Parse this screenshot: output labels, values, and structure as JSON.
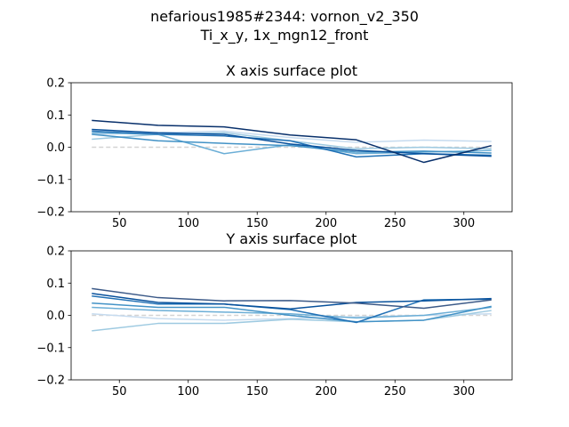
{
  "figure": {
    "suptitle_line1": "nefarious1985#2344: vornon_v2_350",
    "suptitle_line2": "Ti_x_y, 1x_mgn12_front"
  },
  "chart_data": [
    {
      "type": "line",
      "title": "X axis surface plot",
      "xlabel": "",
      "ylabel": "",
      "xlim": [
        15,
        335
      ],
      "ylim": [
        -0.2,
        0.2
      ],
      "xticks": [
        50,
        100,
        150,
        200,
        250,
        300
      ],
      "yticks": [
        -0.2,
        -0.1,
        0.0,
        0.1,
        0.2
      ],
      "grid": false,
      "legend": "none",
      "x": [
        30,
        78,
        126,
        174,
        222,
        271,
        320
      ],
      "reference_line": {
        "y": 0.0,
        "style": "dashed",
        "color": "#d3d3d3"
      },
      "series": [
        {
          "color": "#c6dbef",
          "values": [
            0.04,
            0.045,
            0.05,
            0.03,
            0.015,
            0.022,
            0.018
          ]
        },
        {
          "color": "#9ecae1",
          "values": [
            0.025,
            0.04,
            0.045,
            0.02,
            -0.005,
            0.0,
            -0.005
          ]
        },
        {
          "color": "#6baed6",
          "values": [
            0.045,
            0.04,
            -0.02,
            0.008,
            -0.02,
            -0.015,
            -0.01
          ]
        },
        {
          "color": "#4292c6",
          "values": [
            0.04,
            0.02,
            0.012,
            0.005,
            -0.015,
            -0.012,
            -0.018
          ]
        },
        {
          "color": "#2171b5",
          "values": [
            0.05,
            0.04,
            0.035,
            0.02,
            -0.03,
            -0.02,
            -0.025
          ]
        },
        {
          "color": "#08519c",
          "values": [
            0.055,
            0.045,
            0.04,
            0.01,
            -0.01,
            -0.02,
            -0.028
          ]
        },
        {
          "color": "#08306b",
          "values": [
            0.083,
            0.068,
            0.063,
            0.038,
            0.023,
            -0.047,
            0.005
          ]
        }
      ]
    },
    {
      "type": "line",
      "title": "Y axis surface plot",
      "xlabel": "",
      "ylabel": "",
      "xlim": [
        15,
        335
      ],
      "ylim": [
        -0.2,
        0.2
      ],
      "xticks": [
        50,
        100,
        150,
        200,
        250,
        300
      ],
      "yticks": [
        -0.2,
        -0.1,
        0.0,
        0.1,
        0.2
      ],
      "grid": false,
      "legend": "none",
      "x": [
        30,
        78,
        126,
        174,
        222,
        271,
        320
      ],
      "reference_line": {
        "y": 0.0,
        "style": "dashed",
        "color": "#d3d3d3"
      },
      "series": [
        {
          "color": "#c6dbef",
          "values": [
            0.005,
            -0.01,
            -0.015,
            -0.01,
            -0.005,
            0.0,
            0.005
          ]
        },
        {
          "color": "#9ecae1",
          "values": [
            -0.048,
            -0.025,
            -0.025,
            -0.012,
            -0.02,
            -0.015,
            0.015
          ]
        },
        {
          "color": "#6baed6",
          "values": [
            0.025,
            0.015,
            0.01,
            0.005,
            -0.008,
            0.0,
            0.025
          ]
        },
        {
          "color": "#4292c6",
          "values": [
            0.038,
            0.025,
            0.025,
            0.0,
            -0.02,
            -0.015,
            0.028
          ]
        },
        {
          "color": "#2171b5",
          "values": [
            0.06,
            0.035,
            0.035,
            0.018,
            -0.022,
            0.048,
            0.05
          ]
        },
        {
          "color": "#08519c",
          "values": [
            0.068,
            0.04,
            0.035,
            0.02,
            0.04,
            0.045,
            0.052
          ]
        },
        {
          "color": "#3c5a88",
          "values": [
            0.083,
            0.055,
            0.045,
            0.046,
            0.038,
            0.022,
            0.048
          ]
        }
      ]
    }
  ]
}
